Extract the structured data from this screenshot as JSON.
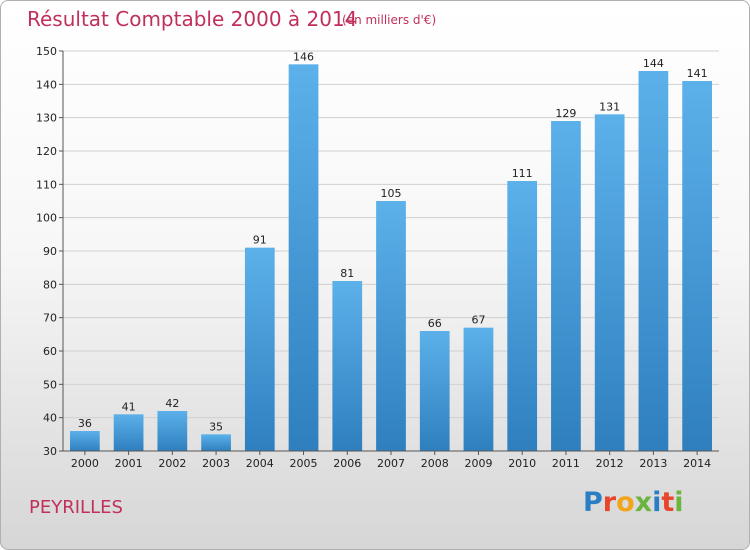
{
  "header": {
    "title": "Résultat Comptable 2000 à 2014",
    "subtitle": "(en milliers d'€)"
  },
  "footer": {
    "commune": "PEYRILLES",
    "logo_text": "Proxiti",
    "logo_colors": [
      "#2a7fc4",
      "#e8452c",
      "#f2a51c",
      "#6bb43f",
      "#2a7fc4",
      "#e8452c",
      "#6bb43f"
    ]
  },
  "chart_data": {
    "type": "bar",
    "title": "Résultat Comptable 2000 à 2014",
    "subtitle": "(en milliers d'€)",
    "xlabel": "",
    "ylabel": "",
    "categories": [
      "2000",
      "2001",
      "2002",
      "2003",
      "2004",
      "2005",
      "2006",
      "2007",
      "2008",
      "2009",
      "2010",
      "2011",
      "2012",
      "2013",
      "2014"
    ],
    "values": [
      36,
      41,
      42,
      35,
      91,
      146,
      81,
      105,
      66,
      67,
      111,
      129,
      131,
      144,
      141
    ],
    "ylim": [
      30,
      150
    ],
    "yticks": [
      30,
      40,
      50,
      60,
      70,
      80,
      90,
      100,
      110,
      120,
      130,
      140,
      150
    ],
    "grid": true,
    "bar_color": "#4a9edb"
  }
}
